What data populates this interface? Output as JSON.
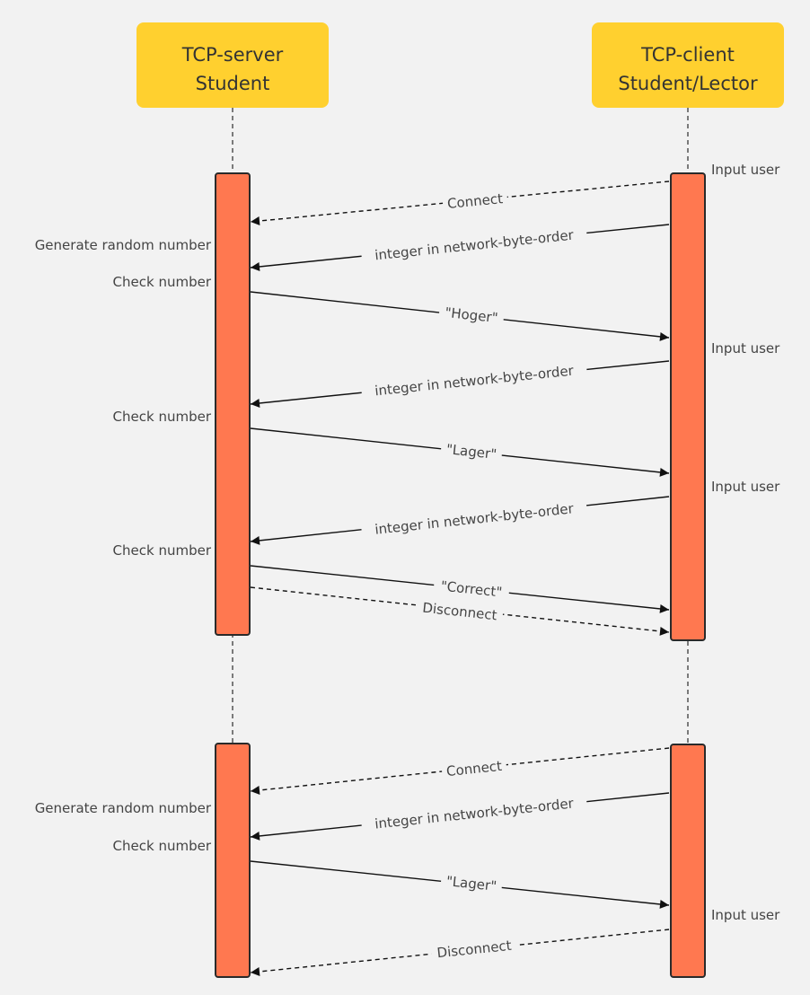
{
  "actors": [
    {
      "id": "server",
      "lines": [
        "TCP-server",
        "Student"
      ]
    },
    {
      "id": "client",
      "lines": [
        "TCP-client",
        "Student/Lector"
      ]
    }
  ],
  "colors": {
    "actor": "#ffd02f",
    "activation": "#ff7850",
    "background": "#f2f2f2",
    "line": "#111111",
    "text": "#444444"
  },
  "sessions": [
    {
      "messages": [
        {
          "from": "client",
          "to": "server",
          "label": "Connect",
          "style": "dashed"
        },
        {
          "from": "client",
          "to": "server",
          "label": "integer in network-byte-order",
          "style": "solid"
        },
        {
          "from": "server",
          "to": "client",
          "label": "\"Hoger\"",
          "style": "solid"
        },
        {
          "from": "client",
          "to": "server",
          "label": "integer in network-byte-order",
          "style": "solid"
        },
        {
          "from": "server",
          "to": "client",
          "label": "\"Lager\"",
          "style": "solid"
        },
        {
          "from": "client",
          "to": "server",
          "label": "integer in network-byte-order",
          "style": "solid"
        },
        {
          "from": "server",
          "to": "client",
          "label": "\"Correct\"",
          "style": "solid"
        },
        {
          "from": "server",
          "to": "client",
          "label": "Disconnect",
          "style": "dashed"
        }
      ],
      "server_notes": [
        "Generate random number",
        "Check number",
        "Check number",
        "Check number"
      ],
      "client_notes": [
        "Input user",
        "Input user",
        "Input user"
      ]
    },
    {
      "messages": [
        {
          "from": "client",
          "to": "server",
          "label": "Connect",
          "style": "dashed"
        },
        {
          "from": "client",
          "to": "server",
          "label": "integer in network-byte-order",
          "style": "solid"
        },
        {
          "from": "server",
          "to": "client",
          "label": "\"Lager\"",
          "style": "solid"
        },
        {
          "from": "client",
          "to": "server",
          "label": "Disconnect",
          "style": "dashed"
        }
      ],
      "server_notes": [
        "Generate random number",
        "Check number"
      ],
      "client_notes": [
        "Input user"
      ]
    }
  ]
}
